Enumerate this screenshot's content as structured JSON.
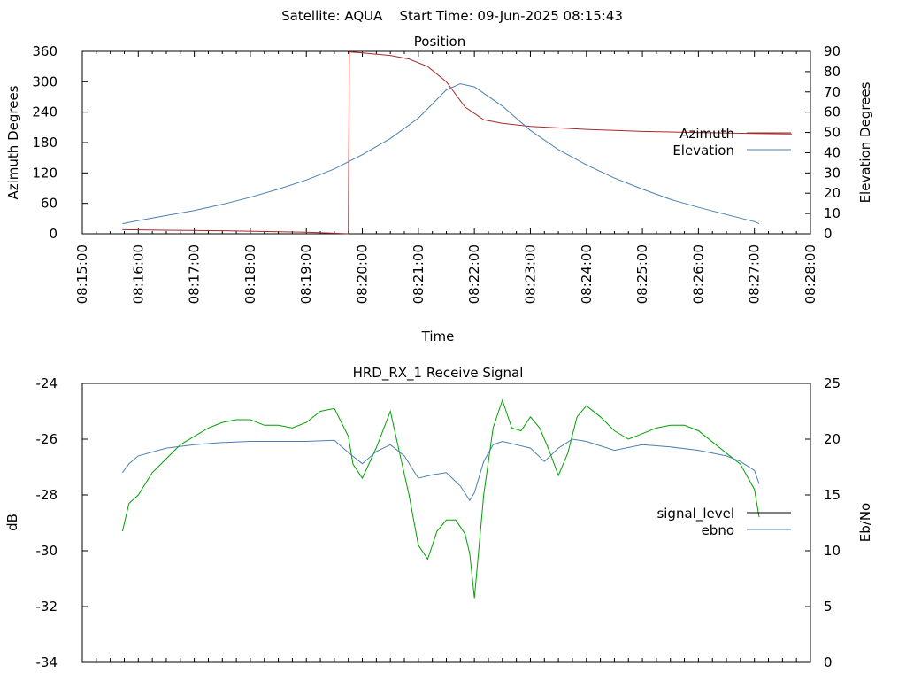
{
  "figure": {
    "title": "Satellite: AQUA    Start Time: 09-Jun-2025 08:15:43"
  },
  "chart_data": [
    {
      "type": "line",
      "title": "Position",
      "xlabel": "Time",
      "ylabel": "Azimuth Degrees",
      "y2label": "Elevation Degrees",
      "x_ticks": [
        "08:15:00",
        "08:16:00",
        "08:17:00",
        "08:18:00",
        "08:19:00",
        "08:20:00",
        "08:21:00",
        "08:22:00",
        "08:23:00",
        "08:24:00",
        "08:25:00",
        "08:26:00",
        "08:27:00",
        "08:28:00"
      ],
      "xlim": [
        "08:15:00",
        "08:28:00"
      ],
      "ylim": [
        0,
        360
      ],
      "y_ticks": [
        0,
        60,
        120,
        180,
        240,
        300,
        360
      ],
      "y2lim": [
        0,
        90
      ],
      "y2_ticks": [
        0,
        10,
        20,
        30,
        40,
        50,
        60,
        70,
        80,
        90
      ],
      "grid": false,
      "legend": "right",
      "series": [
        {
          "name": "Azimuth",
          "axis": "y",
          "color": "#a52a2a",
          "x": [
            "08:15:43",
            "08:16:30",
            "08:17:30",
            "08:18:30",
            "08:19:00",
            "08:19:30",
            "08:19:45",
            "08:19:46",
            "08:20:00",
            "08:20:30",
            "08:20:50",
            "08:21:10",
            "08:21:30",
            "08:21:50",
            "08:22:10",
            "08:22:30",
            "08:23:00",
            "08:24:00",
            "08:25:00",
            "08:26:00",
            "08:27:00",
            "08:27:40"
          ],
          "values": [
            8,
            7,
            6,
            4,
            3,
            1,
            0,
            359,
            357,
            352,
            345,
            330,
            300,
            250,
            225,
            218,
            212,
            206,
            202,
            200,
            198,
            197
          ]
        },
        {
          "name": "Elevation",
          "axis": "y2",
          "color": "#4a80b0",
          "x": [
            "08:15:43",
            "08:16:00",
            "08:16:30",
            "08:17:00",
            "08:17:30",
            "08:18:00",
            "08:18:30",
            "08:19:00",
            "08:19:30",
            "08:20:00",
            "08:20:30",
            "08:21:00",
            "08:21:15",
            "08:21:30",
            "08:21:45",
            "08:22:00",
            "08:22:30",
            "08:23:00",
            "08:23:30",
            "08:24:00",
            "08:24:30",
            "08:25:00",
            "08:25:30",
            "08:26:00",
            "08:26:30",
            "08:27:00",
            "08:27:05"
          ],
          "values": [
            5,
            6.5,
            9,
            11.5,
            14.5,
            18,
            22,
            26.5,
            32,
            39,
            47,
            57,
            64,
            71,
            74,
            72.5,
            63,
            51,
            41.5,
            34,
            27.5,
            22,
            17,
            13,
            9.5,
            6,
            5
          ]
        }
      ]
    },
    {
      "type": "line",
      "title": "HRD_RX_1 Receive Signal",
      "ylabel": "dB",
      "y2label": "Eb/No",
      "xlim": [
        "08:15:00",
        "08:28:00"
      ],
      "ylim": [
        -34,
        -24
      ],
      "y_ticks": [
        -34,
        -32,
        -30,
        -28,
        -26,
        -24
      ],
      "y2lim": [
        0,
        25
      ],
      "y2_ticks": [
        0,
        5,
        10,
        15,
        20,
        25
      ],
      "grid": false,
      "legend": "right",
      "series": [
        {
          "name": "signal_level",
          "axis": "y",
          "color": "#00a000",
          "x": [
            "08:15:43",
            "08:15:50",
            "08:16:00",
            "08:16:15",
            "08:16:30",
            "08:16:45",
            "08:17:00",
            "08:17:15",
            "08:17:30",
            "08:17:45",
            "08:18:00",
            "08:18:15",
            "08:18:30",
            "08:18:45",
            "08:19:00",
            "08:19:15",
            "08:19:30",
            "08:19:45",
            "08:19:50",
            "08:20:00",
            "08:20:15",
            "08:20:30",
            "08:20:40",
            "08:20:50",
            "08:21:00",
            "08:21:10",
            "08:21:20",
            "08:21:30",
            "08:21:40",
            "08:21:50",
            "08:21:55",
            "08:22:00",
            "08:22:10",
            "08:22:20",
            "08:22:30",
            "08:22:40",
            "08:22:50",
            "08:23:00",
            "08:23:10",
            "08:23:20",
            "08:23:30",
            "08:23:40",
            "08:23:50",
            "08:24:00",
            "08:24:15",
            "08:24:30",
            "08:24:45",
            "08:25:00",
            "08:25:15",
            "08:25:30",
            "08:25:45",
            "08:26:00",
            "08:26:15",
            "08:26:30",
            "08:26:45",
            "08:27:00",
            "08:27:05"
          ],
          "values": [
            -29.3,
            -28.3,
            -28.0,
            -27.2,
            -26.7,
            -26.2,
            -25.9,
            -25.6,
            -25.4,
            -25.3,
            -25.3,
            -25.5,
            -25.5,
            -25.6,
            -25.4,
            -25.0,
            -24.9,
            -25.9,
            -26.9,
            -27.4,
            -26.3,
            -25.0,
            -26.5,
            -28.0,
            -29.8,
            -30.3,
            -29.3,
            -28.9,
            -28.9,
            -29.4,
            -30.1,
            -31.7,
            -28.0,
            -25.6,
            -24.6,
            -25.6,
            -25.7,
            -25.2,
            -25.6,
            -26.4,
            -27.3,
            -26.5,
            -25.2,
            -24.8,
            -25.2,
            -25.7,
            -26.0,
            -25.8,
            -25.6,
            -25.5,
            -25.5,
            -25.7,
            -26.1,
            -26.5,
            -26.9,
            -27.8,
            -28.8
          ]
        },
        {
          "name": "ebno",
          "axis": "y2",
          "color": "#4a80b0",
          "x": [
            "08:15:43",
            "08:15:50",
            "08:16:00",
            "08:16:30",
            "08:17:00",
            "08:17:30",
            "08:18:00",
            "08:18:30",
            "08:19:00",
            "08:19:30",
            "08:19:45",
            "08:20:00",
            "08:20:15",
            "08:20:30",
            "08:20:45",
            "08:21:00",
            "08:21:15",
            "08:21:30",
            "08:21:45",
            "08:21:55",
            "08:22:00",
            "08:22:10",
            "08:22:20",
            "08:22:30",
            "08:22:45",
            "08:23:00",
            "08:23:15",
            "08:23:30",
            "08:23:45",
            "08:24:00",
            "08:24:30",
            "08:25:00",
            "08:25:30",
            "08:26:00",
            "08:26:30",
            "08:26:45",
            "08:27:00",
            "08:27:05"
          ],
          "values": [
            17,
            17.8,
            18.5,
            19.2,
            19.5,
            19.7,
            19.8,
            19.8,
            19.8,
            19.9,
            18.8,
            17.8,
            18.9,
            19.5,
            18.5,
            16.5,
            16.8,
            17.0,
            15.8,
            14.5,
            15.2,
            18.0,
            19.5,
            19.8,
            19.5,
            19.2,
            18.0,
            19.2,
            20.0,
            19.8,
            19.0,
            19.5,
            19.3,
            19.0,
            18.5,
            18.0,
            17.2,
            16.0
          ]
        }
      ]
    }
  ]
}
